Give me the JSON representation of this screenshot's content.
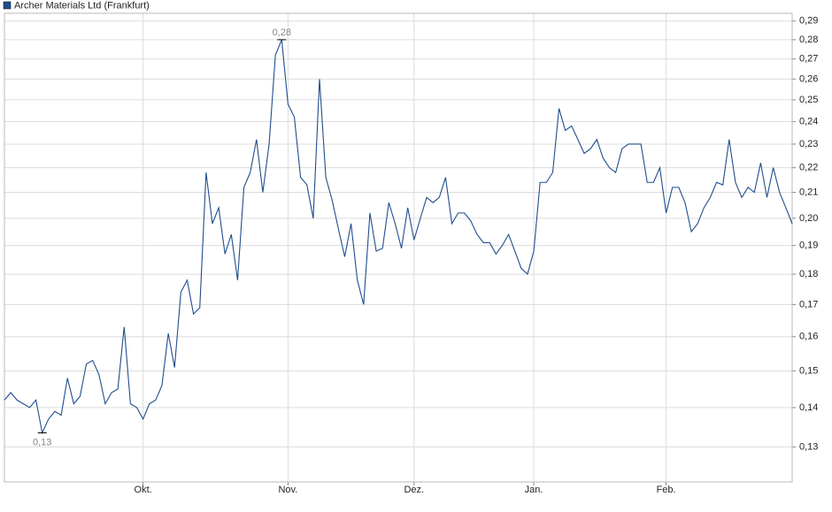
{
  "chart_data": {
    "type": "line",
    "log_scale": true,
    "grid": true,
    "legend": "top-left",
    "annotations": {
      "max_label": "0,28",
      "min_label": "0,13"
    },
    "ylim": [
      0.1217,
      0.2943
    ],
    "yticks": [
      {
        "value": 0.13,
        "label": "0,13"
      },
      {
        "value": 0.14,
        "label": "0,14"
      },
      {
        "value": 0.15,
        "label": "0,15"
      },
      {
        "value": 0.16,
        "label": "0,16"
      },
      {
        "value": 0.17,
        "label": "0,17"
      },
      {
        "value": 0.18,
        "label": "0,18"
      },
      {
        "value": 0.19,
        "label": "0,19"
      },
      {
        "value": 0.2,
        "label": "0,20"
      },
      {
        "value": 0.21,
        "label": "0,21"
      },
      {
        "value": 0.22,
        "label": "0,22"
      },
      {
        "value": 0.23,
        "label": "0,23"
      },
      {
        "value": 0.24,
        "label": "0,24"
      },
      {
        "value": 0.25,
        "label": "0,25"
      },
      {
        "value": 0.26,
        "label": "0,26"
      },
      {
        "value": 0.27,
        "label": "0,27"
      },
      {
        "value": 0.28,
        "label": "0,28"
      },
      {
        "value": 0.29,
        "label": "0,29"
      }
    ],
    "categories": [
      null,
      null,
      null,
      null,
      null,
      null,
      null,
      null,
      null,
      null,
      null,
      null,
      null,
      null,
      null,
      null,
      null,
      null,
      null,
      null,
      null,
      null,
      "Okt.",
      null,
      null,
      null,
      null,
      null,
      null,
      null,
      null,
      null,
      null,
      null,
      null,
      null,
      null,
      null,
      null,
      null,
      null,
      null,
      null,
      null,
      null,
      "Nov.",
      null,
      null,
      null,
      null,
      null,
      null,
      null,
      null,
      null,
      null,
      null,
      null,
      null,
      null,
      null,
      null,
      null,
      null,
      null,
      "Dez.",
      null,
      null,
      null,
      null,
      null,
      null,
      null,
      null,
      null,
      null,
      null,
      null,
      null,
      null,
      null,
      null,
      null,
      null,
      "Jan.",
      null,
      null,
      null,
      null,
      null,
      null,
      null,
      null,
      null,
      null,
      null,
      null,
      null,
      null,
      null,
      null,
      null,
      null,
      null,
      null,
      "Feb.",
      null,
      null,
      null,
      null,
      null,
      null,
      null,
      null,
      null,
      null,
      null,
      null,
      null,
      null,
      null,
      null,
      null,
      null,
      null,
      null
    ],
    "series": [
      {
        "name": "Archer Materials Ltd (Frankfurt)",
        "color": "#1f4e8c",
        "values": [
          0.142,
          0.144,
          0.142,
          0.141,
          0.14,
          0.142,
          0.1335,
          0.137,
          0.139,
          0.138,
          0.148,
          0.141,
          0.143,
          0.152,
          0.153,
          0.149,
          0.141,
          0.144,
          0.145,
          0.163,
          0.141,
          0.14,
          0.137,
          0.141,
          0.142,
          0.146,
          0.161,
          0.151,
          0.174,
          0.178,
          0.167,
          0.169,
          0.218,
          0.198,
          0.204,
          0.187,
          0.194,
          0.178,
          0.212,
          0.218,
          0.232,
          0.21,
          0.23,
          0.272,
          0.28,
          0.248,
          0.242,
          0.216,
          0.213,
          0.2,
          0.26,
          0.216,
          0.207,
          0.196,
          0.186,
          0.198,
          0.178,
          0.17,
          0.202,
          0.188,
          0.189,
          0.206,
          0.198,
          0.189,
          0.204,
          0.192,
          0.2,
          0.208,
          0.206,
          0.208,
          0.216,
          0.198,
          0.202,
          0.202,
          0.199,
          0.194,
          0.191,
          0.191,
          0.187,
          0.19,
          0.194,
          0.188,
          0.182,
          0.18,
          0.188,
          0.214,
          0.214,
          0.218,
          0.246,
          0.236,
          0.238,
          0.232,
          0.226,
          0.228,
          0.232,
          0.224,
          0.22,
          0.218,
          0.228,
          0.23,
          0.23,
          0.23,
          0.214,
          0.214,
          0.22,
          0.202,
          0.212,
          0.212,
          0.206,
          0.195,
          0.198,
          0.204,
          0.208,
          0.214,
          0.213,
          0.232,
          0.214,
          0.208,
          0.212,
          0.21,
          0.222,
          0.208,
          0.22,
          0.21,
          0.204,
          0.198
        ]
      }
    ]
  }
}
